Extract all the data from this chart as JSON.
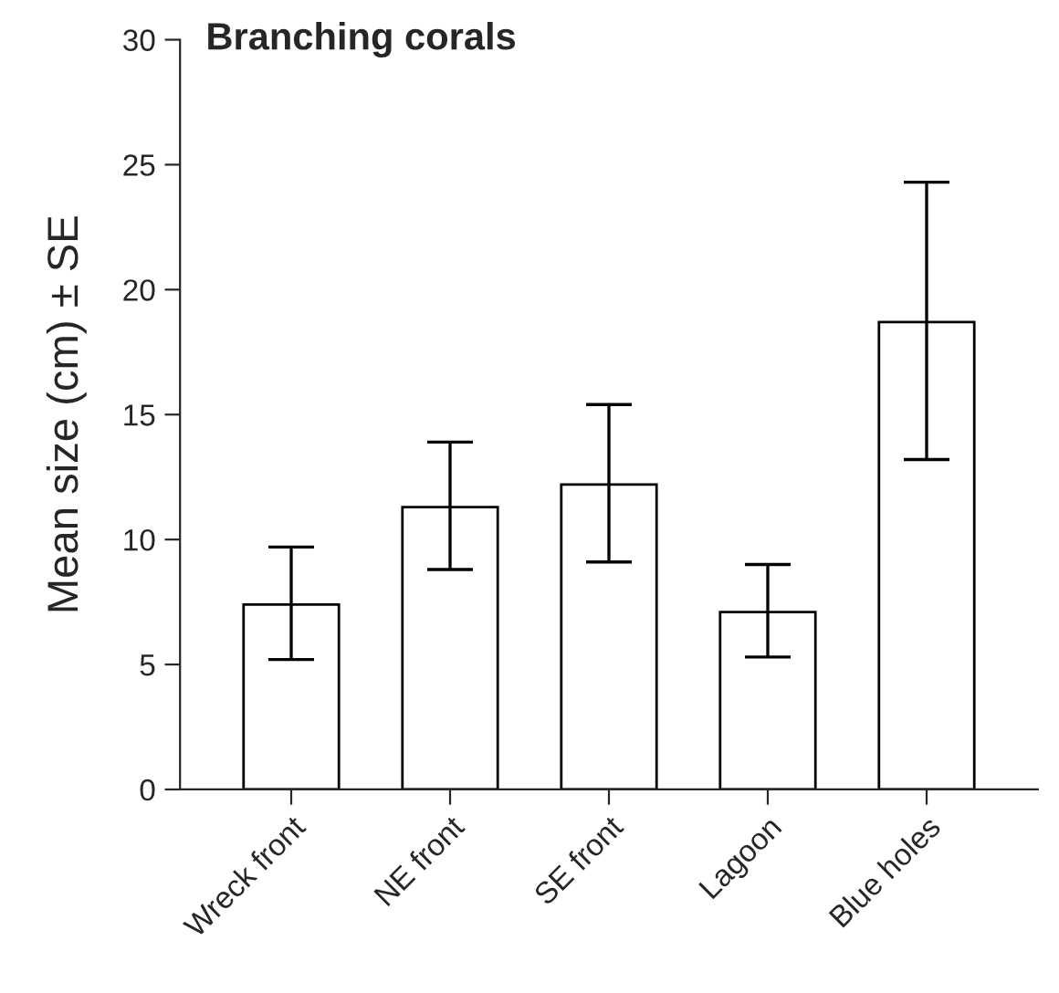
{
  "chart_data": {
    "type": "bar",
    "title": "Branching corals",
    "ylabel": "Mean size (cm) ± SE",
    "categories": [
      "Wreck front",
      "NE front",
      "SE front",
      "Lagoon",
      "Blue holes"
    ],
    "values": [
      7.4,
      11.3,
      12.2,
      7.1,
      18.7
    ],
    "errors": [
      [
        5.2,
        9.7
      ],
      [
        8.8,
        13.9
      ],
      [
        9.1,
        15.4
      ],
      [
        5.3,
        9.0
      ],
      [
        13.2,
        24.3
      ]
    ],
    "color": "#ffffff",
    "ylim": [
      0,
      30
    ],
    "yticks": [
      0,
      5,
      10,
      15,
      20,
      25,
      30
    ],
    "grid": false
  }
}
